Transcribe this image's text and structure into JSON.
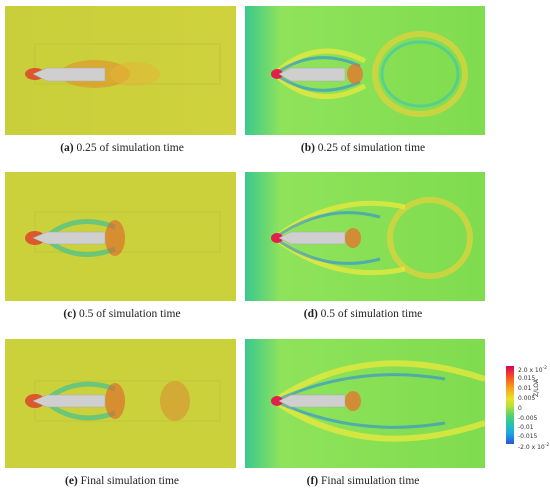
{
  "panels": [
    {
      "id": "a",
      "letter": "(a)",
      "caption": " 0.25 of simulation time",
      "style": "left"
    },
    {
      "id": "b",
      "letter": "(b)",
      "caption": " 0.25 of simulation time",
      "style": "right"
    },
    {
      "id": "c",
      "letter": "(c)",
      "caption": " 0.5 of simulation time",
      "style": "left"
    },
    {
      "id": "d",
      "letter": "(d)",
      "caption": " 0.5 of simulation time",
      "style": "right"
    },
    {
      "id": "e",
      "letter": "(e)",
      "caption": " Final simulation time",
      "style": "left"
    },
    {
      "id": "f",
      "letter": "(f)",
      "caption": " Final simulation time",
      "style": "right"
    }
  ],
  "colorbar": {
    "title": "Z/LOA",
    "ticks": [
      "2.0 x 10",
      "0.015",
      "0.01",
      "0.005",
      "0",
      "-0.005",
      "-0.01",
      "-0.015",
      "-2.0 x 10"
    ],
    "exponent": "-2",
    "colors": [
      "#d8006a",
      "#ef3b2c",
      "#f7a21a",
      "#e9e12a",
      "#b5e03a",
      "#5fd463",
      "#27c9a0",
      "#1fa7e6",
      "#2a55d6"
    ]
  }
}
